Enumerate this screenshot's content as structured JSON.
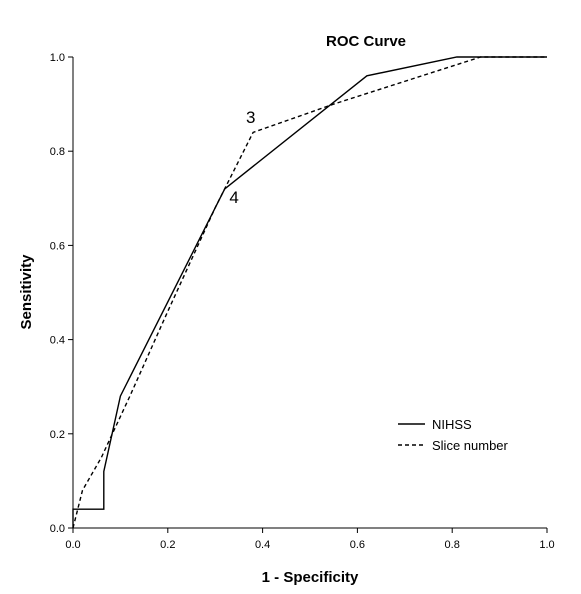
{
  "chart_data": {
    "type": "line",
    "title": "ROC Curve",
    "xlabel": "1 - Specificity",
    "ylabel": "Sensitivity",
    "xlim": [
      0,
      1
    ],
    "ylim": [
      0,
      1
    ],
    "x_ticks": [
      "0.0",
      "0.2",
      "0.4",
      "0.6",
      "0.8",
      "1.0"
    ],
    "y_ticks": [
      "0.0",
      "0.2",
      "0.4",
      "0.6",
      "0.8",
      "1.0"
    ],
    "grid": false,
    "legend_position": "bottom-right",
    "series": [
      {
        "name": "NIHSS",
        "style": "solid",
        "color": "#000000",
        "x": [
          0,
          0,
          0.065,
          0.065,
          0.1,
          0.32,
          0.62,
          0.81,
          1.0
        ],
        "y": [
          0,
          0.04,
          0.04,
          0.12,
          0.28,
          0.72,
          0.96,
          1.0,
          1.0
        ]
      },
      {
        "name": "Slice number",
        "style": "dashed",
        "color": "#000000",
        "x": [
          0,
          0.02,
          0.06,
          0.12,
          0.2,
          0.3,
          0.38,
          0.55,
          0.86,
          1.0
        ],
        "y": [
          0,
          0.08,
          0.15,
          0.28,
          0.46,
          0.68,
          0.84,
          0.9,
          1.0,
          1.0
        ]
      }
    ],
    "annotations": [
      {
        "text": "3",
        "x": 0.365,
        "y": 0.86
      },
      {
        "text": "4",
        "x": 0.33,
        "y": 0.69
      }
    ]
  }
}
